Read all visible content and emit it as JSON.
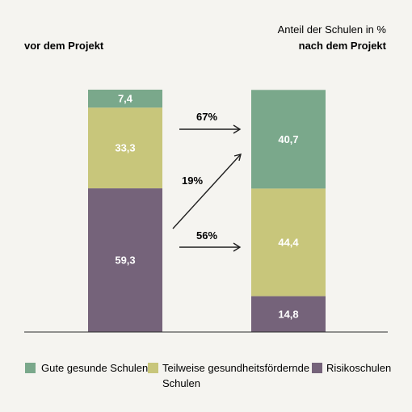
{
  "chart_data": {
    "type": "bar",
    "stacked": true,
    "categories": [
      "vor dem Projekt",
      "nach dem Projekt"
    ],
    "unit_label": "Anteil der Schulen in %",
    "ylim": [
      0,
      100
    ],
    "series": [
      {
        "name": "Risikoschulen",
        "color": "#75637a",
        "values": [
          59.3,
          14.8
        ],
        "labels": [
          "59,3",
          "14,8"
        ]
      },
      {
        "name": "Teilweise gesundheitsfördernde Schulen",
        "color": "#c8c67b",
        "values": [
          33.3,
          44.4
        ],
        "labels": [
          "33,3",
          "44,4"
        ]
      },
      {
        "name": "Gute gesunde Schulen",
        "color": "#7aa88b",
        "values": [
          7.4,
          40.7
        ],
        "labels": [
          "7,4",
          "40,7"
        ]
      }
    ],
    "transitions": [
      {
        "label": "67%",
        "from": "Teilweise gesundheitsfördernde Schulen",
        "to": "Gute gesunde Schulen"
      },
      {
        "label": "19%",
        "from": "Risikoschulen",
        "to": "Gute gesunde Schulen"
      },
      {
        "label": "56%",
        "from": "Risikoschulen",
        "to": "Teilweise gesundheitsfördernde Schulen"
      }
    ],
    "legend": {
      "placement": "bottom",
      "items": [
        {
          "text": "Gute gesunde Schulen",
          "color": "#7aa88b"
        },
        {
          "text_line1": "Teilweise gesundheitsfördernde",
          "text_line2": "Schulen",
          "color": "#c8c67b"
        },
        {
          "text": "Risikoschulen",
          "color": "#75637a"
        }
      ]
    }
  }
}
